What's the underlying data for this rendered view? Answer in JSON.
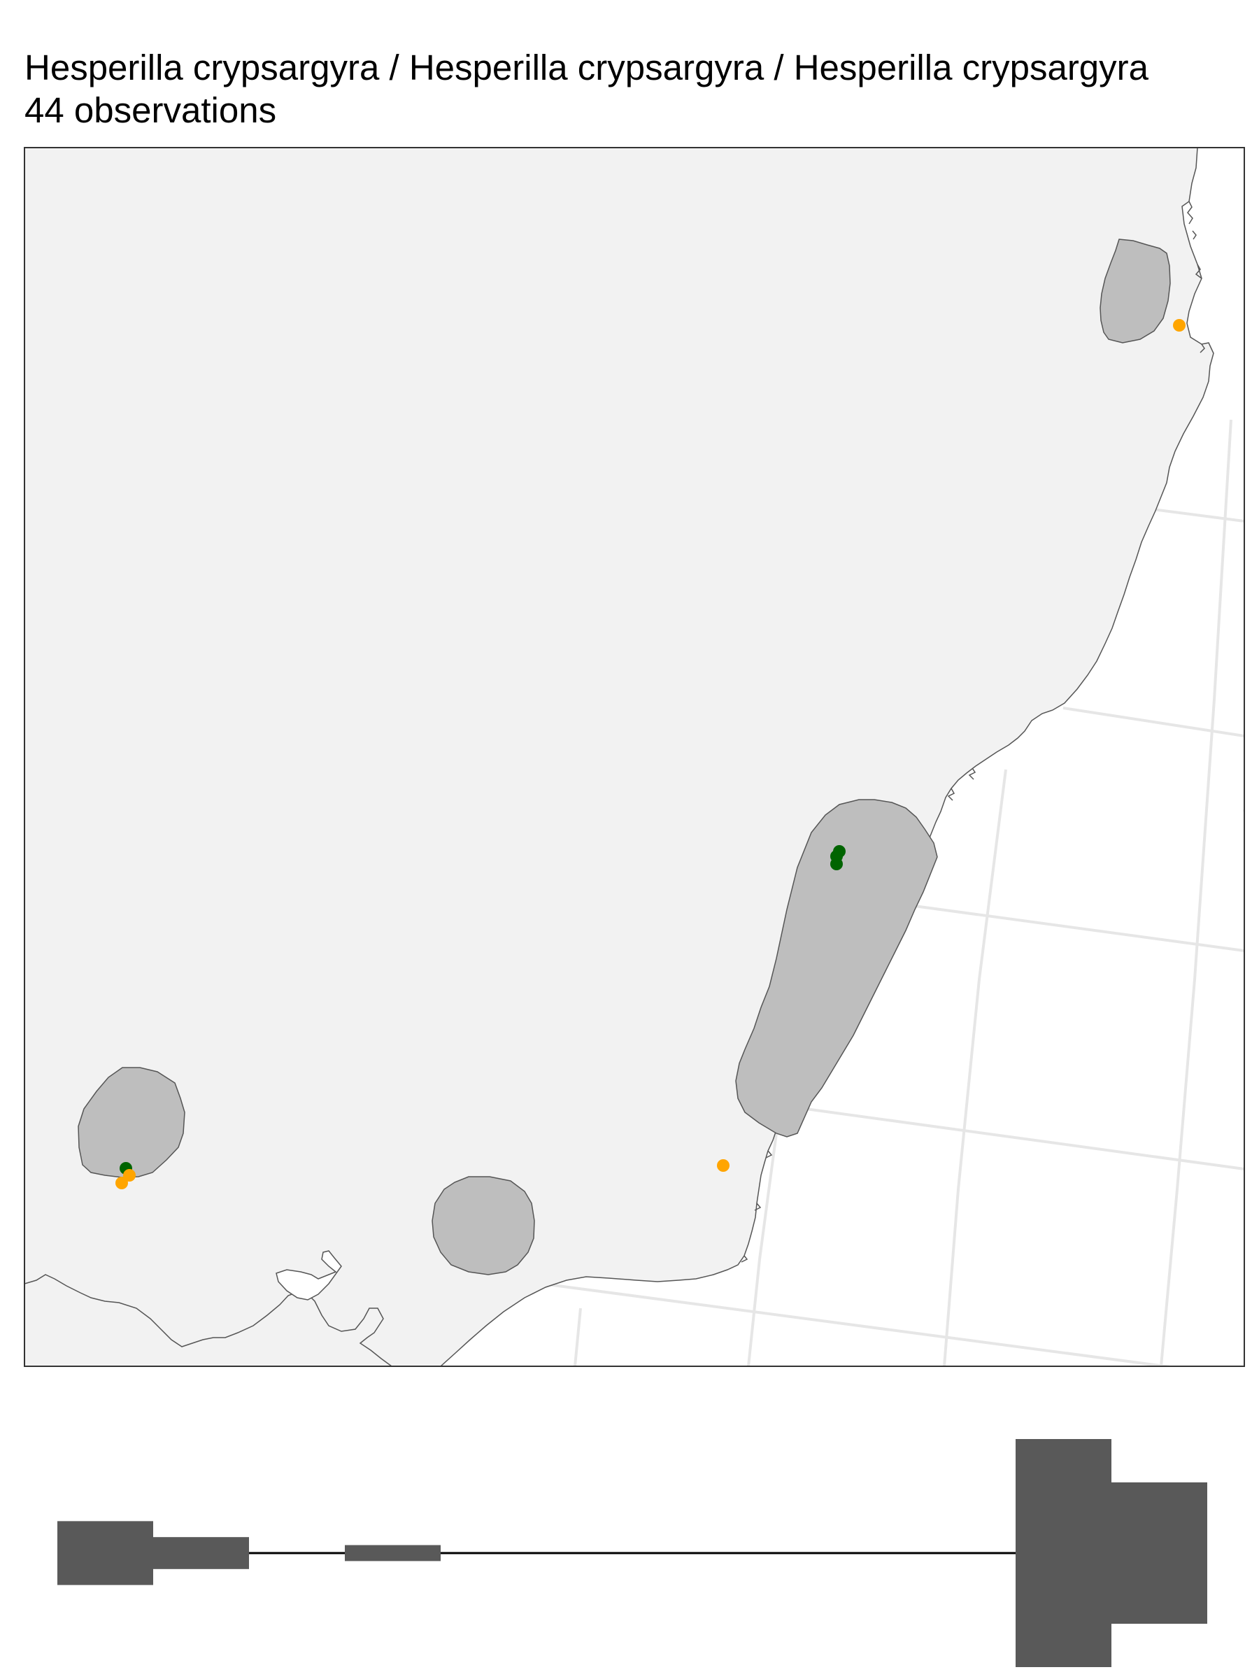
{
  "title": "Hesperilla crypsargyra / Hesperilla crypsargyra / Hesperilla crypsargyra",
  "subtitle": "44 observations",
  "colors": {
    "land": "#f2f2f2",
    "ocean": "#ffffff",
    "coastline": "#555555",
    "graticule": "#e6e6e6",
    "range_fill": "#bebebe",
    "range_stroke": "#555555",
    "frame": "#333333",
    "obs_green": "#006400",
    "obs_orange": "#ffa500",
    "phenology_bar": "#595959",
    "phenology_line": "#000000"
  },
  "map": {
    "type": "range map",
    "range_polygons": [
      {
        "name": "range-polygon-northeast"
      },
      {
        "name": "range-polygon-central-coast"
      },
      {
        "name": "range-polygon-west"
      },
      {
        "name": "range-polygon-south"
      }
    ],
    "observations": [
      {
        "name": "obs-northeast-orange",
        "color": "obs_orange"
      },
      {
        "name": "obs-central-green-1",
        "color": "obs_green"
      },
      {
        "name": "obs-central-green-2",
        "color": "obs_green"
      },
      {
        "name": "obs-central-green-3",
        "color": "obs_green"
      },
      {
        "name": "obs-west-green",
        "color": "obs_green"
      },
      {
        "name": "obs-west-orange-1",
        "color": "obs_orange"
      },
      {
        "name": "obs-west-orange-2",
        "color": "obs_orange"
      },
      {
        "name": "obs-southeast-orange",
        "color": "obs_orange"
      }
    ]
  },
  "phenology": {
    "type": "monthly activity bars",
    "months": [
      {
        "month": 1,
        "upper": 0.28,
        "lower": 0.28
      },
      {
        "month": 2,
        "upper": 0.14,
        "lower": 0.14
      },
      {
        "month": 3,
        "upper": 0.0,
        "lower": 0.0
      },
      {
        "month": 4,
        "upper": 0.07,
        "lower": 0.07
      },
      {
        "month": 5,
        "upper": 0.0,
        "lower": 0.0
      },
      {
        "month": 6,
        "upper": 0.0,
        "lower": 0.0
      },
      {
        "month": 7,
        "upper": 0.0,
        "lower": 0.0
      },
      {
        "month": 8,
        "upper": 0.0,
        "lower": 0.0
      },
      {
        "month": 9,
        "upper": 0.0,
        "lower": 0.0
      },
      {
        "month": 10,
        "upper": 0.0,
        "lower": 0.0
      },
      {
        "month": 11,
        "upper": 1.0,
        "lower": 1.0
      },
      {
        "month": 12,
        "upper": 0.62,
        "lower": 0.62
      }
    ]
  }
}
